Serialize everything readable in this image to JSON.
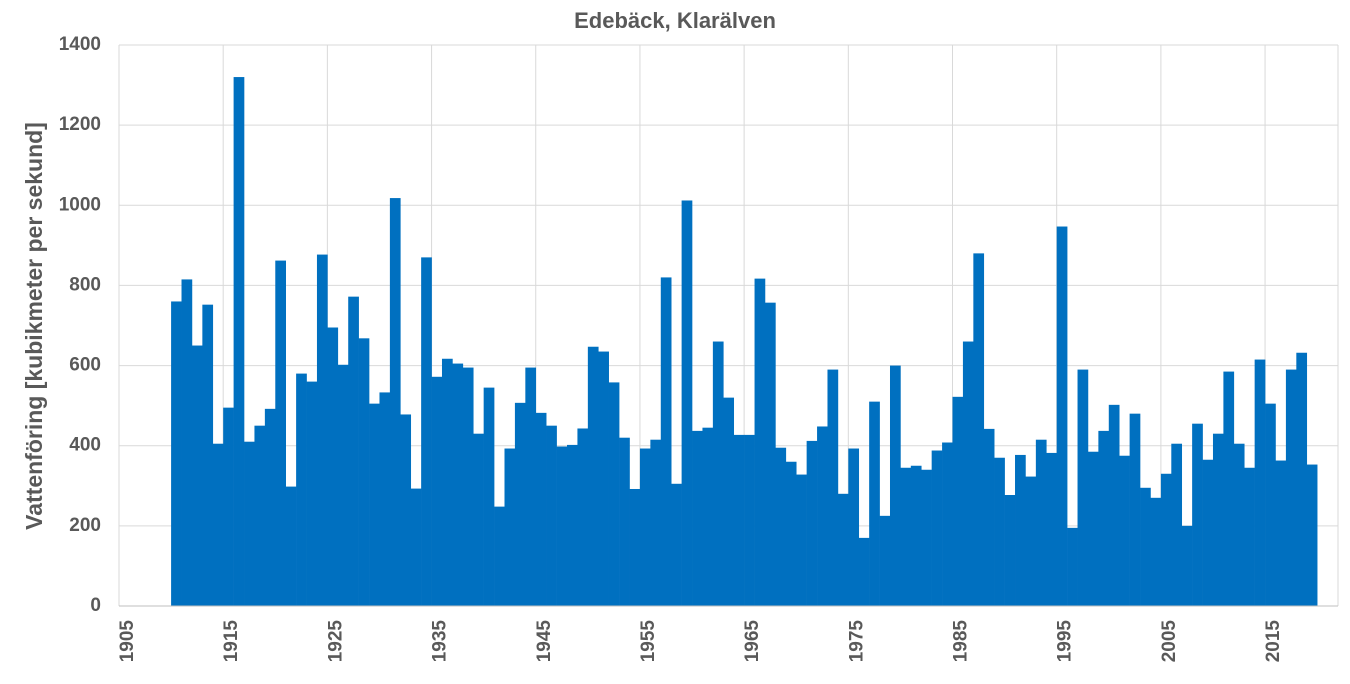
{
  "chart_data": {
    "type": "bar",
    "title": "Edebäck, Klarälven",
    "y_label": "Vattenföring [kubikmeter per sekund]",
    "color": "#0070c0",
    "grid": true,
    "x": [
      1910,
      1911,
      1912,
      1913,
      1914,
      1915,
      1916,
      1917,
      1918,
      1919,
      1920,
      1921,
      1922,
      1923,
      1924,
      1925,
      1926,
      1927,
      1928,
      1929,
      1930,
      1931,
      1932,
      1933,
      1934,
      1935,
      1936,
      1937,
      1938,
      1939,
      1940,
      1941,
      1942,
      1943,
      1944,
      1945,
      1946,
      1947,
      1948,
      1949,
      1950,
      1951,
      1952,
      1953,
      1954,
      1955,
      1956,
      1957,
      1958,
      1959,
      1960,
      1961,
      1962,
      1963,
      1964,
      1965,
      1966,
      1967,
      1968,
      1969,
      1970,
      1971,
      1972,
      1973,
      1974,
      1975,
      1976,
      1977,
      1978,
      1979,
      1980,
      1981,
      1982,
      1983,
      1984,
      1985,
      1986,
      1987,
      1988,
      1989,
      1990,
      1991,
      1992,
      1993,
      1994,
      1995,
      1996,
      1997,
      1998,
      1999,
      2000,
      2001,
      2002,
      2003,
      2004,
      2005,
      2006,
      2007,
      2008,
      2009,
      2010,
      2011,
      2012,
      2013,
      2014,
      2015,
      2016,
      2017,
      2018,
      2019
    ],
    "values": [
      760,
      815,
      650,
      752,
      405,
      495,
      1320,
      410,
      450,
      492,
      862,
      298,
      580,
      560,
      877,
      695,
      602,
      772,
      668,
      505,
      533,
      1018,
      478,
      293,
      870,
      572,
      617,
      605,
      595,
      430,
      545,
      248,
      393,
      507,
      595,
      482,
      450,
      398,
      402,
      443,
      647,
      635,
      558,
      420,
      292,
      393,
      415,
      820,
      305,
      1012,
      437,
      445,
      660,
      520,
      427,
      427,
      817,
      757,
      395,
      360,
      328,
      412,
      448,
      590,
      280,
      393,
      170,
      510,
      225,
      600,
      345,
      350,
      340,
      388,
      408,
      522,
      660,
      880,
      442,
      370,
      277,
      377,
      323,
      415,
      382,
      947,
      195,
      590,
      385,
      437,
      502,
      375,
      480,
      295,
      270,
      330,
      405,
      200,
      455,
      365,
      430,
      585,
      405,
      345,
      615,
      505,
      363,
      590,
      632,
      353
    ],
    "xlim": [
      1905,
      2022
    ],
    "xticks": [
      1905,
      1915,
      1925,
      1935,
      1945,
      1955,
      1965,
      1975,
      1985,
      1995,
      2005,
      2015
    ],
    "ylim": [
      0,
      1400
    ],
    "yticks": [
      0,
      200,
      400,
      600,
      800,
      1000,
      1200,
      1400
    ]
  }
}
